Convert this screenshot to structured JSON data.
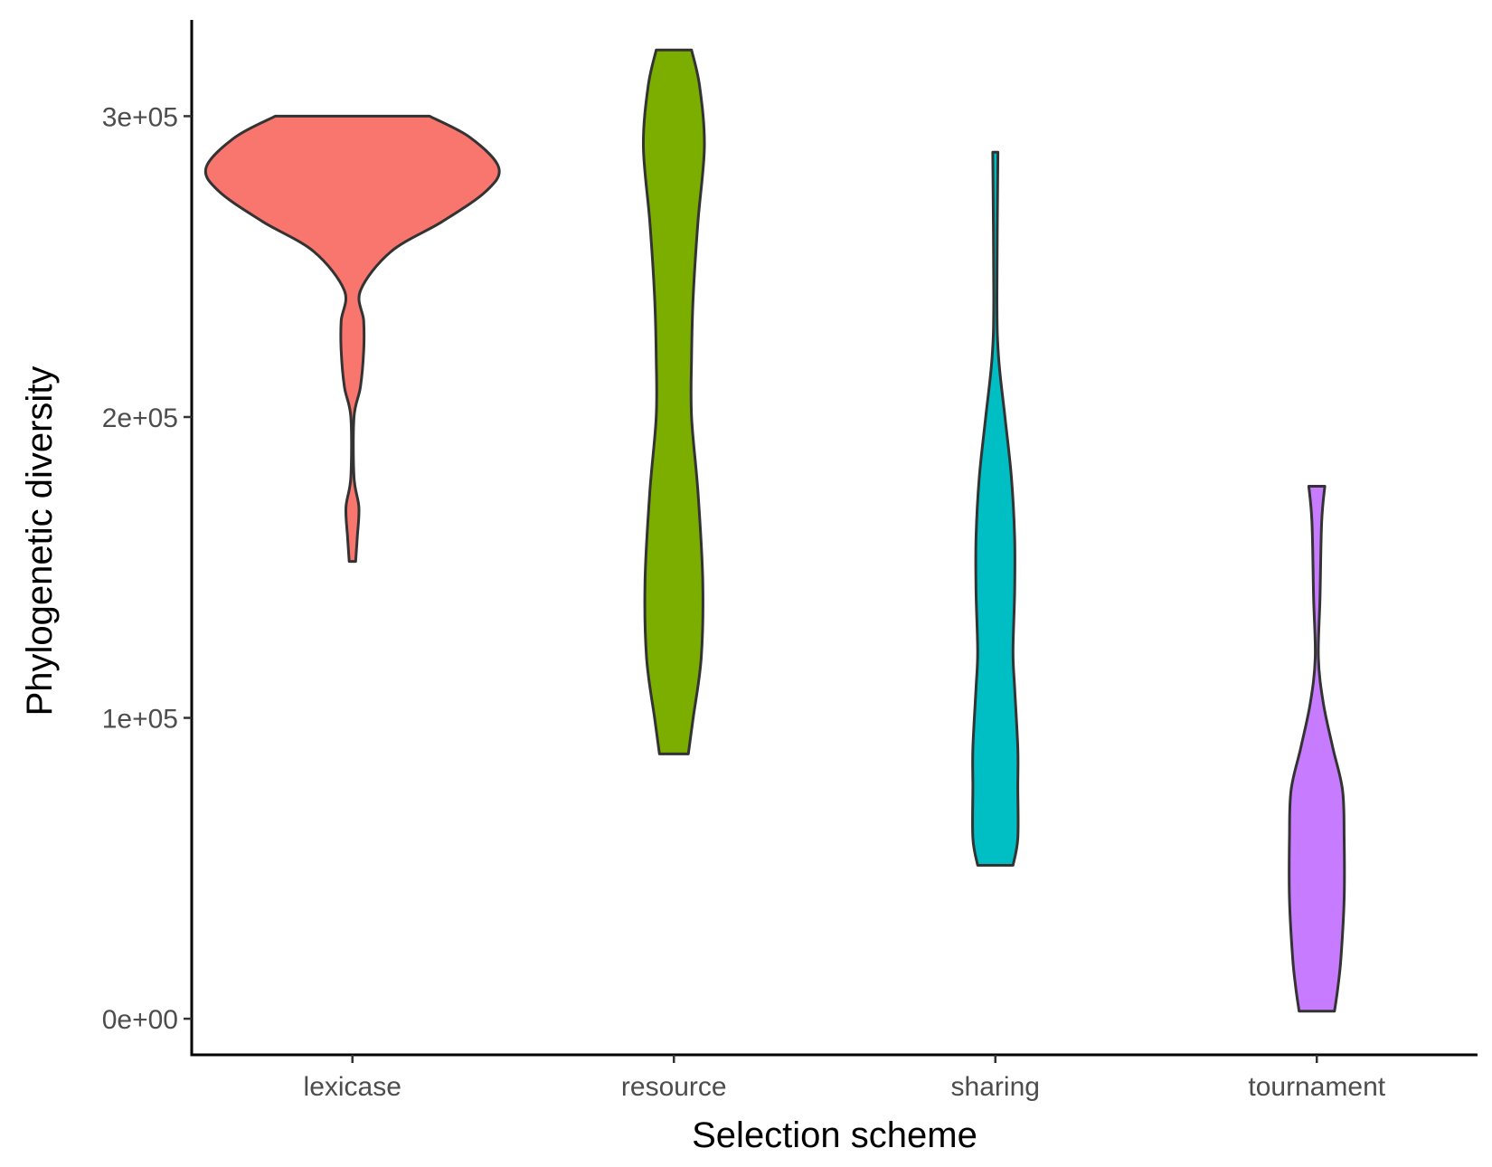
{
  "chart_data": {
    "type": "violin",
    "title": "",
    "xlabel": "Selection scheme",
    "ylabel": "Phylogenetic diversity",
    "categories": [
      "lexicase",
      "resource",
      "sharing",
      "tournament"
    ],
    "ylim": [
      -12000,
      332000
    ],
    "y_ticks": [
      {
        "value": 0,
        "label": "0e+00"
      },
      {
        "value": 100000,
        "label": "1e+05"
      },
      {
        "value": 200000,
        "label": "2e+05"
      },
      {
        "value": 300000,
        "label": "3e+05"
      }
    ],
    "grid": false,
    "legend": "none",
    "series": [
      {
        "category": "lexicase",
        "color": "#F8766D",
        "profile": [
          [
            152000,
            0.02
          ],
          [
            160000,
            0.03
          ],
          [
            170000,
            0.04
          ],
          [
            180000,
            0.01
          ],
          [
            200000,
            0.01
          ],
          [
            210000,
            0.05
          ],
          [
            222000,
            0.07
          ],
          [
            232000,
            0.07
          ],
          [
            242000,
            0.05
          ],
          [
            255000,
            0.24
          ],
          [
            265000,
            0.56
          ],
          [
            275000,
            0.83
          ],
          [
            283000,
            0.91
          ],
          [
            293000,
            0.73
          ],
          [
            300000,
            0.48
          ]
        ]
      },
      {
        "category": "resource",
        "color": "#7CAE00",
        "profile": [
          [
            88000,
            0.09
          ],
          [
            100000,
            0.12
          ],
          [
            120000,
            0.17
          ],
          [
            145000,
            0.18
          ],
          [
            175000,
            0.15
          ],
          [
            200000,
            0.11
          ],
          [
            220000,
            0.11
          ],
          [
            240000,
            0.12
          ],
          [
            265000,
            0.15
          ],
          [
            290000,
            0.19
          ],
          [
            310000,
            0.16
          ],
          [
            322000,
            0.11
          ]
        ]
      },
      {
        "category": "sharing",
        "color": "#00BFC4",
        "profile": [
          [
            51000,
            0.11
          ],
          [
            60000,
            0.14
          ],
          [
            77000,
            0.14
          ],
          [
            90000,
            0.14
          ],
          [
            110000,
            0.12
          ],
          [
            122000,
            0.11
          ],
          [
            142000,
            0.12
          ],
          [
            160000,
            0.12
          ],
          [
            180000,
            0.1
          ],
          [
            200000,
            0.06
          ],
          [
            220000,
            0.02
          ],
          [
            240000,
            0.01
          ],
          [
            288000,
            0.016
          ]
        ]
      },
      {
        "category": "tournament",
        "color": "#C77CFF",
        "profile": [
          [
            2500,
            0.11
          ],
          [
            10000,
            0.13
          ],
          [
            20000,
            0.15
          ],
          [
            40000,
            0.17
          ],
          [
            60000,
            0.17
          ],
          [
            76000,
            0.16
          ],
          [
            90000,
            0.1
          ],
          [
            105000,
            0.04
          ],
          [
            120000,
            0.01
          ],
          [
            140000,
            0.02
          ],
          [
            165000,
            0.03
          ],
          [
            177000,
            0.05
          ]
        ]
      }
    ]
  }
}
